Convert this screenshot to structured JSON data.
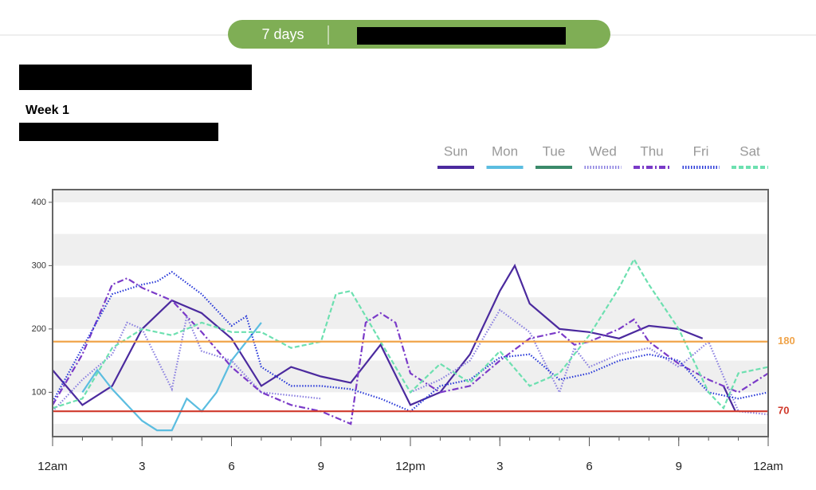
{
  "header": {
    "range_button": "7 days",
    "week_label": "Week 1"
  },
  "chart_data": {
    "type": "line",
    "xlim": [
      0,
      24
    ],
    "xticks": [
      {
        "value": 0,
        "label": "12am"
      },
      3,
      6,
      9,
      {
        "value": 12,
        "label": "12pm"
      },
      {
        "value": 15,
        "label": "3"
      },
      {
        "value": 18,
        "label": "6"
      },
      {
        "value": 21,
        "label": "9"
      },
      {
        "value": 24,
        "label": "12am"
      }
    ],
    "ylim": [
      30,
      420
    ],
    "yticks": [
      100,
      200,
      300,
      400
    ],
    "ref_lines": [
      {
        "value": 180,
        "color": "#f0a44a"
      },
      {
        "value": 70,
        "color": "#d0392b"
      }
    ],
    "series": [
      {
        "name": "Sun",
        "color": "#4b2a9e",
        "style": "solid",
        "x": [
          0,
          1,
          2,
          3,
          4,
          5,
          6,
          7,
          8,
          9,
          10,
          11,
          12,
          13,
          14,
          15,
          15.5,
          16,
          17,
          18,
          19,
          20,
          21,
          21.8,
          22,
          22.5,
          22.9
        ],
        "values": [
          135,
          80,
          110,
          200,
          245,
          225,
          185,
          110,
          140,
          125,
          115,
          175,
          80,
          100,
          160,
          260,
          300,
          240,
          200,
          195,
          185,
          205,
          200,
          185,
          null,
          110,
          70
        ]
      },
      {
        "name": "Mon",
        "color": "#5bbde0",
        "style": "solid",
        "x": [
          1,
          1.5,
          2,
          2.5,
          3,
          3.5,
          4,
          4.5,
          5,
          5.5,
          6,
          6.5,
          7
        ],
        "values": [
          100,
          135,
          105,
          80,
          55,
          40,
          40,
          90,
          70,
          100,
          150,
          180,
          210
        ]
      },
      {
        "name": "Tue",
        "color": "#3a8a6a",
        "style": "solid",
        "x": [],
        "values": []
      },
      {
        "name": "Wed",
        "color": "#8a7fe0",
        "style": "dotted",
        "x": [
          0,
          1,
          2,
          2.5,
          3,
          4,
          4.5,
          5,
          6,
          7,
          8,
          9,
          10,
          12,
          13,
          14,
          15,
          16,
          17,
          17.5,
          18,
          19,
          20,
          21,
          22,
          23,
          24
        ],
        "values": [
          70,
          120,
          160,
          210,
          200,
          105,
          220,
          165,
          150,
          100,
          95,
          90,
          null,
          100,
          120,
          150,
          230,
          195,
          100,
          170,
          140,
          160,
          170,
          140,
          180,
          70,
          65
        ]
      },
      {
        "name": "Thu",
        "color": "#7a3ac8",
        "style": "dashdot",
        "x": [
          0,
          1,
          2,
          2.5,
          3,
          4,
          5,
          6,
          7,
          8,
          9,
          10,
          10.5,
          11,
          11.5,
          12,
          13,
          14,
          15,
          16,
          17,
          17.5,
          18,
          19,
          19.5,
          20,
          21,
          22,
          23,
          24
        ],
        "values": [
          80,
          160,
          270,
          280,
          265,
          245,
          195,
          140,
          100,
          80,
          70,
          50,
          210,
          225,
          210,
          130,
          100,
          110,
          150,
          185,
          195,
          175,
          180,
          200,
          215,
          180,
          145,
          120,
          100,
          130
        ]
      },
      {
        "name": "Fri",
        "color": "#2a3ad8",
        "style": "dotted",
        "x": [
          0,
          1,
          2,
          3,
          3.5,
          4,
          5,
          6,
          6.5,
          7,
          8,
          9,
          10,
          11,
          12,
          13,
          14,
          15,
          16,
          17,
          18,
          19,
          20,
          21,
          22,
          23,
          24
        ],
        "values": [
          85,
          170,
          255,
          270,
          275,
          290,
          255,
          205,
          220,
          140,
          110,
          110,
          105,
          90,
          70,
          110,
          120,
          155,
          160,
          120,
          130,
          150,
          160,
          150,
          100,
          90,
          100
        ]
      },
      {
        "name": "Sat",
        "color": "#6de0b0",
        "style": "dashed",
        "x": [
          0,
          1,
          2,
          3,
          4,
          5,
          6,
          7,
          8,
          9,
          9.5,
          10,
          11,
          12,
          13,
          14,
          15,
          16,
          17,
          18,
          19,
          19.5,
          20,
          21,
          22,
          22.5,
          23,
          24
        ],
        "values": [
          75,
          90,
          170,
          200,
          190,
          210,
          195,
          195,
          170,
          180,
          255,
          260,
          180,
          100,
          145,
          115,
          165,
          110,
          130,
          190,
          265,
          310,
          270,
          200,
          100,
          75,
          130,
          140
        ]
      }
    ]
  }
}
